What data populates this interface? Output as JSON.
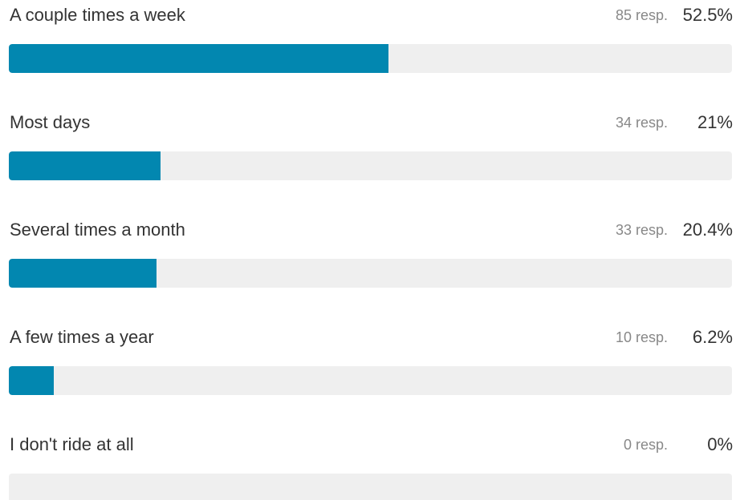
{
  "colors": {
    "bar_fill": "#0287b0",
    "track": "#efefef"
  },
  "chart_data": {
    "type": "bar",
    "orientation": "horizontal",
    "categories": [
      "A couple times a week",
      "Most days",
      "Several times a month",
      "A few times a year",
      "I don't ride at all"
    ],
    "responses": [
      85,
      34,
      33,
      10,
      0
    ],
    "values": [
      52.5,
      21,
      20.4,
      6.2,
      0
    ],
    "xlim": [
      0,
      100
    ],
    "rows": [
      {
        "label": "A couple times a week",
        "resp_text": "85 resp.",
        "pct_text": "52.5%",
        "value": 52.5
      },
      {
        "label": "Most days",
        "resp_text": "34 resp.",
        "pct_text": "21%",
        "value": 21
      },
      {
        "label": "Several times a month",
        "resp_text": "33 resp.",
        "pct_text": "20.4%",
        "value": 20.4
      },
      {
        "label": "A few times a year",
        "resp_text": "10 resp.",
        "pct_text": "6.2%",
        "value": 6.2
      },
      {
        "label": "I don't ride at all",
        "resp_text": "0 resp.",
        "pct_text": "0%",
        "value": 0
      }
    ]
  }
}
